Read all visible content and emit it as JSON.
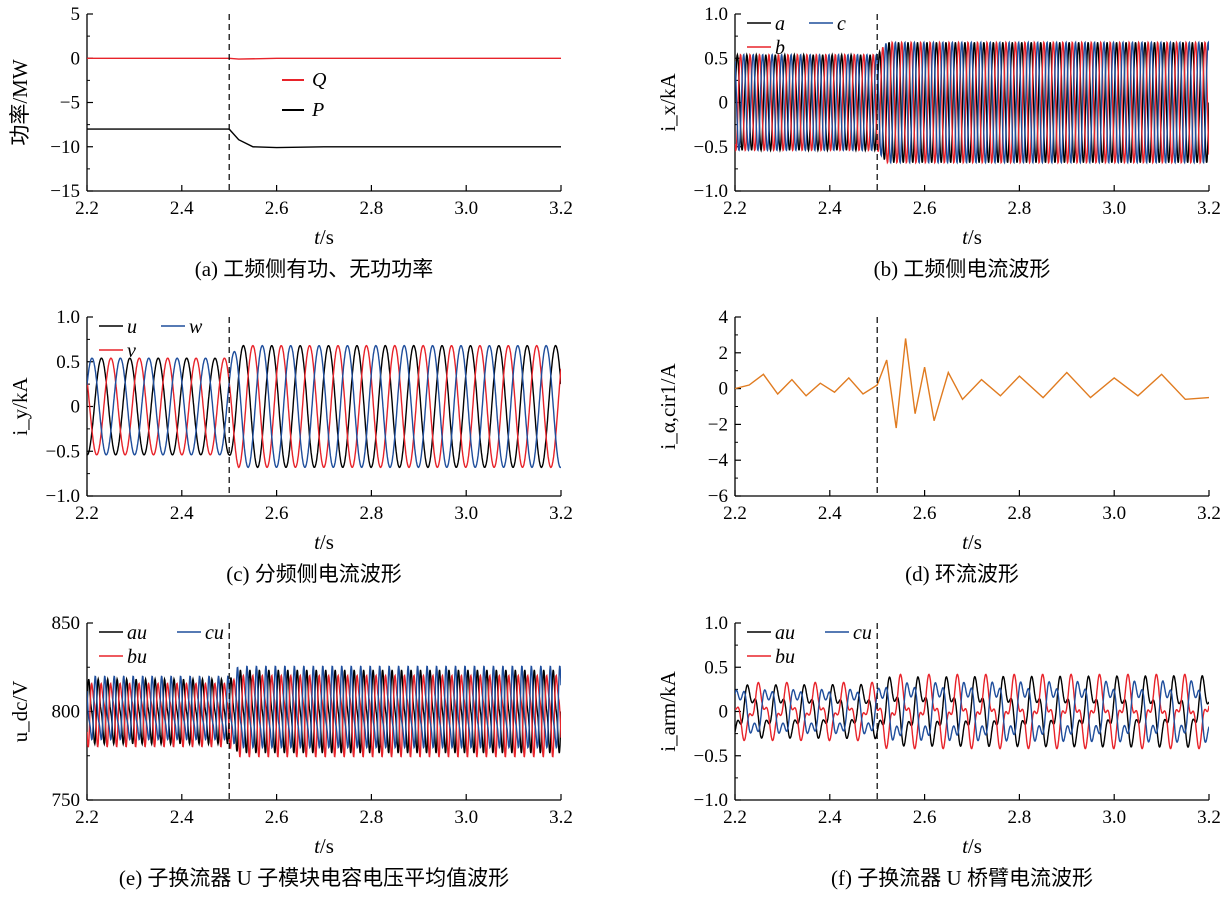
{
  "figure": {
    "x_axis": {
      "range": [
        2.2,
        3.2
      ],
      "ticks": [
        "2.2",
        "2.4",
        "2.6",
        "2.8",
        "3.0",
        "3.2"
      ],
      "label_var": "t",
      "label_unit": "/s"
    },
    "event_time": 2.5
  },
  "colors": {
    "black": "#000000",
    "red": "#e8232a",
    "blue": "#1f4e9c",
    "orange": "#e07b20"
  },
  "chart_data": [
    {
      "id": "a",
      "type": "line",
      "caption": "(a)  工频侧有功、无功功率",
      "ylabel": "功率/MW",
      "ylim": [
        -15,
        5
      ],
      "yticks": [
        "5",
        "0",
        "−5",
        "−10",
        "−15"
      ],
      "xlim": [
        2.2,
        3.2
      ],
      "legend_position": "center",
      "series": [
        {
          "name": "Q",
          "color": "#e8232a",
          "x": [
            2.2,
            2.5,
            2.52,
            2.6,
            3.2
          ],
          "y": [
            0,
            0,
            -0.1,
            0,
            0
          ]
        },
        {
          "name": "P",
          "color": "#000000",
          "x": [
            2.2,
            2.5,
            2.52,
            2.55,
            2.6,
            2.7,
            3.2
          ],
          "y": [
            -8,
            -8,
            -9.2,
            -10,
            -10.1,
            -10,
            -10
          ]
        }
      ]
    },
    {
      "id": "b",
      "type": "line",
      "caption": "(b)  工频侧电流波形",
      "ylabel": "i_x/kA",
      "ylim": [
        -1.0,
        1.0
      ],
      "yticks": [
        "1.0",
        "0.5",
        "0",
        "−0.5",
        "−1.0"
      ],
      "xlim": [
        2.2,
        3.2
      ],
      "legend_position": "top-left",
      "waveform": {
        "frequency_hz": 50,
        "amplitude_before": 0.54,
        "amplitude_after": 0.68
      },
      "series": [
        {
          "name": "a",
          "color": "#000000",
          "phase_deg": 0
        },
        {
          "name": "b",
          "color": "#e8232a",
          "phase_deg": -120
        },
        {
          "name": "c",
          "color": "#1f4e9c",
          "phase_deg": 120
        }
      ]
    },
    {
      "id": "c",
      "type": "line",
      "caption": "(c)  分频侧电流波形",
      "ylabel": "i_y/kA",
      "ylim": [
        -1.0,
        1.0
      ],
      "yticks": [
        "1.0",
        "0.5",
        "0",
        "−0.5",
        "−1.0"
      ],
      "xlim": [
        2.2,
        3.2
      ],
      "legend_position": "top-left",
      "waveform": {
        "frequency_hz": 16.7,
        "amplitude_before": 0.54,
        "amplitude_after": 0.68
      },
      "series": [
        {
          "name": "u",
          "color": "#000000",
          "phase_deg": 0
        },
        {
          "name": "v",
          "color": "#e8232a",
          "phase_deg": -120
        },
        {
          "name": "w",
          "color": "#1f4e9c",
          "phase_deg": 120
        }
      ]
    },
    {
      "id": "d",
      "type": "line",
      "caption": "(d)  环流波形",
      "ylabel": "i_α,cir1/A",
      "ylim": [
        -6,
        4
      ],
      "yticks": [
        "4",
        "2",
        "0",
        "−2",
        "−4",
        "−6"
      ],
      "xlim": [
        2.2,
        3.2
      ],
      "series": [
        {
          "name": "",
          "color": "#e07b20",
          "x": [
            2.2,
            2.23,
            2.26,
            2.29,
            2.32,
            2.35,
            2.38,
            2.41,
            2.44,
            2.47,
            2.5,
            2.52,
            2.54,
            2.56,
            2.58,
            2.6,
            2.62,
            2.65,
            2.68,
            2.72,
            2.76,
            2.8,
            2.85,
            2.9,
            2.95,
            3.0,
            3.05,
            3.1,
            3.15,
            3.2
          ],
          "y": [
            0,
            0.2,
            0.8,
            -0.3,
            0.5,
            -0.4,
            0.3,
            -0.2,
            0.6,
            -0.3,
            0.2,
            1.6,
            -2.2,
            2.8,
            -1.4,
            1.2,
            -1.8,
            0.9,
            -0.6,
            0.5,
            -0.4,
            0.7,
            -0.5,
            0.9,
            -0.5,
            0.6,
            -0.4,
            0.8,
            -0.6,
            -0.5
          ]
        }
      ]
    },
    {
      "id": "e",
      "type": "line",
      "caption": "(e)  子换流器 U 子模块电容电压平均值波形",
      "ylabel": "u_dc/V",
      "ylim": [
        750,
        850
      ],
      "yticks": [
        "850",
        "800",
        "750"
      ],
      "xlim": [
        2.2,
        3.2
      ],
      "legend_position": "top-left",
      "waveform": {
        "center": 800,
        "fundamental_hz": 50,
        "amplitude_before": 21,
        "amplitude_after": 27
      },
      "series": [
        {
          "name": "au",
          "color": "#000000",
          "phase_deg": 0
        },
        {
          "name": "bu",
          "color": "#e8232a",
          "phase_deg": -120
        },
        {
          "name": "cu",
          "color": "#1f4e9c",
          "phase_deg": 120
        }
      ]
    },
    {
      "id": "f",
      "type": "line",
      "caption": "(f)  子换流器 U 桥臂电流波形",
      "ylabel": "i_arm/kA",
      "ylim": [
        -1.0,
        1.0
      ],
      "yticks": [
        "1.0",
        "0.5",
        "0",
        "−0.5",
        "−1.0"
      ],
      "xlim": [
        2.2,
        3.2
      ],
      "legend_position": "top-left",
      "waveform": {
        "fundamental_hz": 16.7,
        "amplitude_before": 0.33,
        "amplitude_after": 0.42
      },
      "series": [
        {
          "name": "au",
          "color": "#000000",
          "phase_deg": 0
        },
        {
          "name": "bu",
          "color": "#e8232a",
          "phase_deg": -120
        },
        {
          "name": "cu",
          "color": "#1f4e9c",
          "phase_deg": 120
        }
      ]
    }
  ]
}
